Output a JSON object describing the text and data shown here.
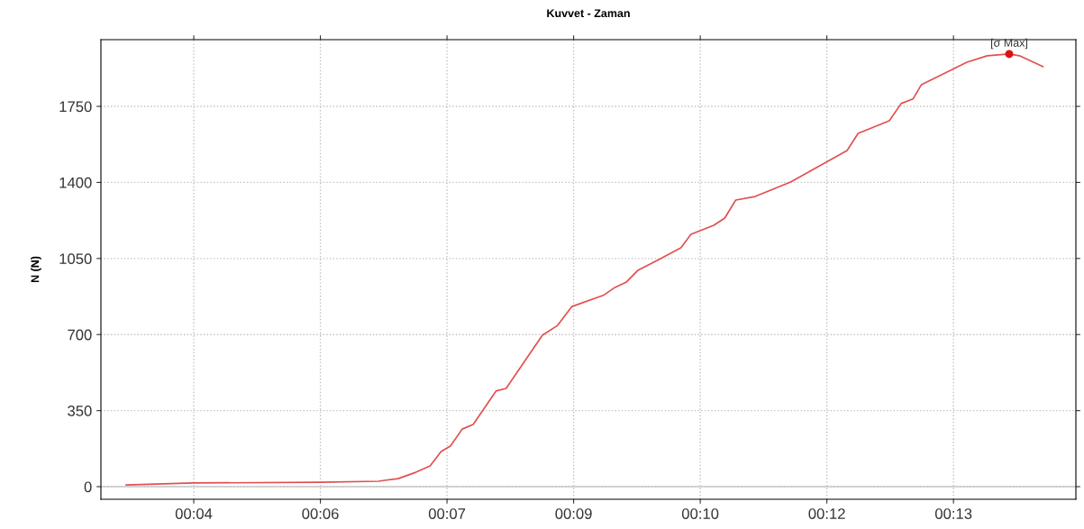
{
  "chart_data": {
    "type": "line",
    "title": "Kuvvet - Zaman",
    "ylabel": "N (N)",
    "xlim": [
      2.9,
      14.45
    ],
    "ylim": [
      -58,
      2057
    ],
    "xticks": [
      {
        "value": 4,
        "label": "00:04"
      },
      {
        "value": 5.5,
        "label": "00:06"
      },
      {
        "value": 7,
        "label": "00:07"
      },
      {
        "value": 8.5,
        "label": "00:09"
      },
      {
        "value": 10,
        "label": "00:10"
      },
      {
        "value": 11.5,
        "label": "00:12"
      },
      {
        "value": 13,
        "label": "00:13"
      }
    ],
    "yticks": [
      0,
      350,
      700,
      1050,
      1400,
      1750
    ],
    "grid": true,
    "line_style": "solid",
    "ref_lines": [
      {
        "axis": "y",
        "value": 0,
        "color": "#c8c8c8"
      }
    ],
    "annotations": [
      {
        "text": "[σ Max]",
        "x": 13.66,
        "y": 1991
      }
    ],
    "series": [
      {
        "color": "#e05050",
        "x": [
          3.2,
          4.0,
          5.5,
          6.19,
          6.26,
          6.42,
          6.63,
          6.8,
          6.93,
          7.04,
          7.18,
          7.31,
          7.58,
          7.7,
          8.13,
          8.31,
          8.48,
          8.85,
          8.99,
          9.12,
          9.26,
          9.51,
          9.77,
          9.89,
          10.16,
          10.29,
          10.42,
          10.65,
          11.07,
          11.74,
          11.87,
          12.24,
          12.38,
          12.52,
          12.62,
          13.16,
          13.4,
          13.66,
          13.78,
          14.06
        ],
        "values": [
          8,
          17,
          20,
          25,
          29,
          37,
          66,
          95,
          162,
          187,
          265,
          286,
          440,
          452,
          697,
          742,
          829,
          880,
          917,
          940,
          995,
          1045,
          1099,
          1161,
          1203,
          1236,
          1319,
          1335,
          1402,
          1547,
          1626,
          1684,
          1763,
          1784,
          1850,
          1953,
          1983,
          1991,
          1983,
          1933
        ]
      },
      {
        "type": "scatter",
        "color": "#dd1111",
        "marker": "circle",
        "x": [
          13.66
        ],
        "values": [
          1991
        ]
      }
    ]
  }
}
